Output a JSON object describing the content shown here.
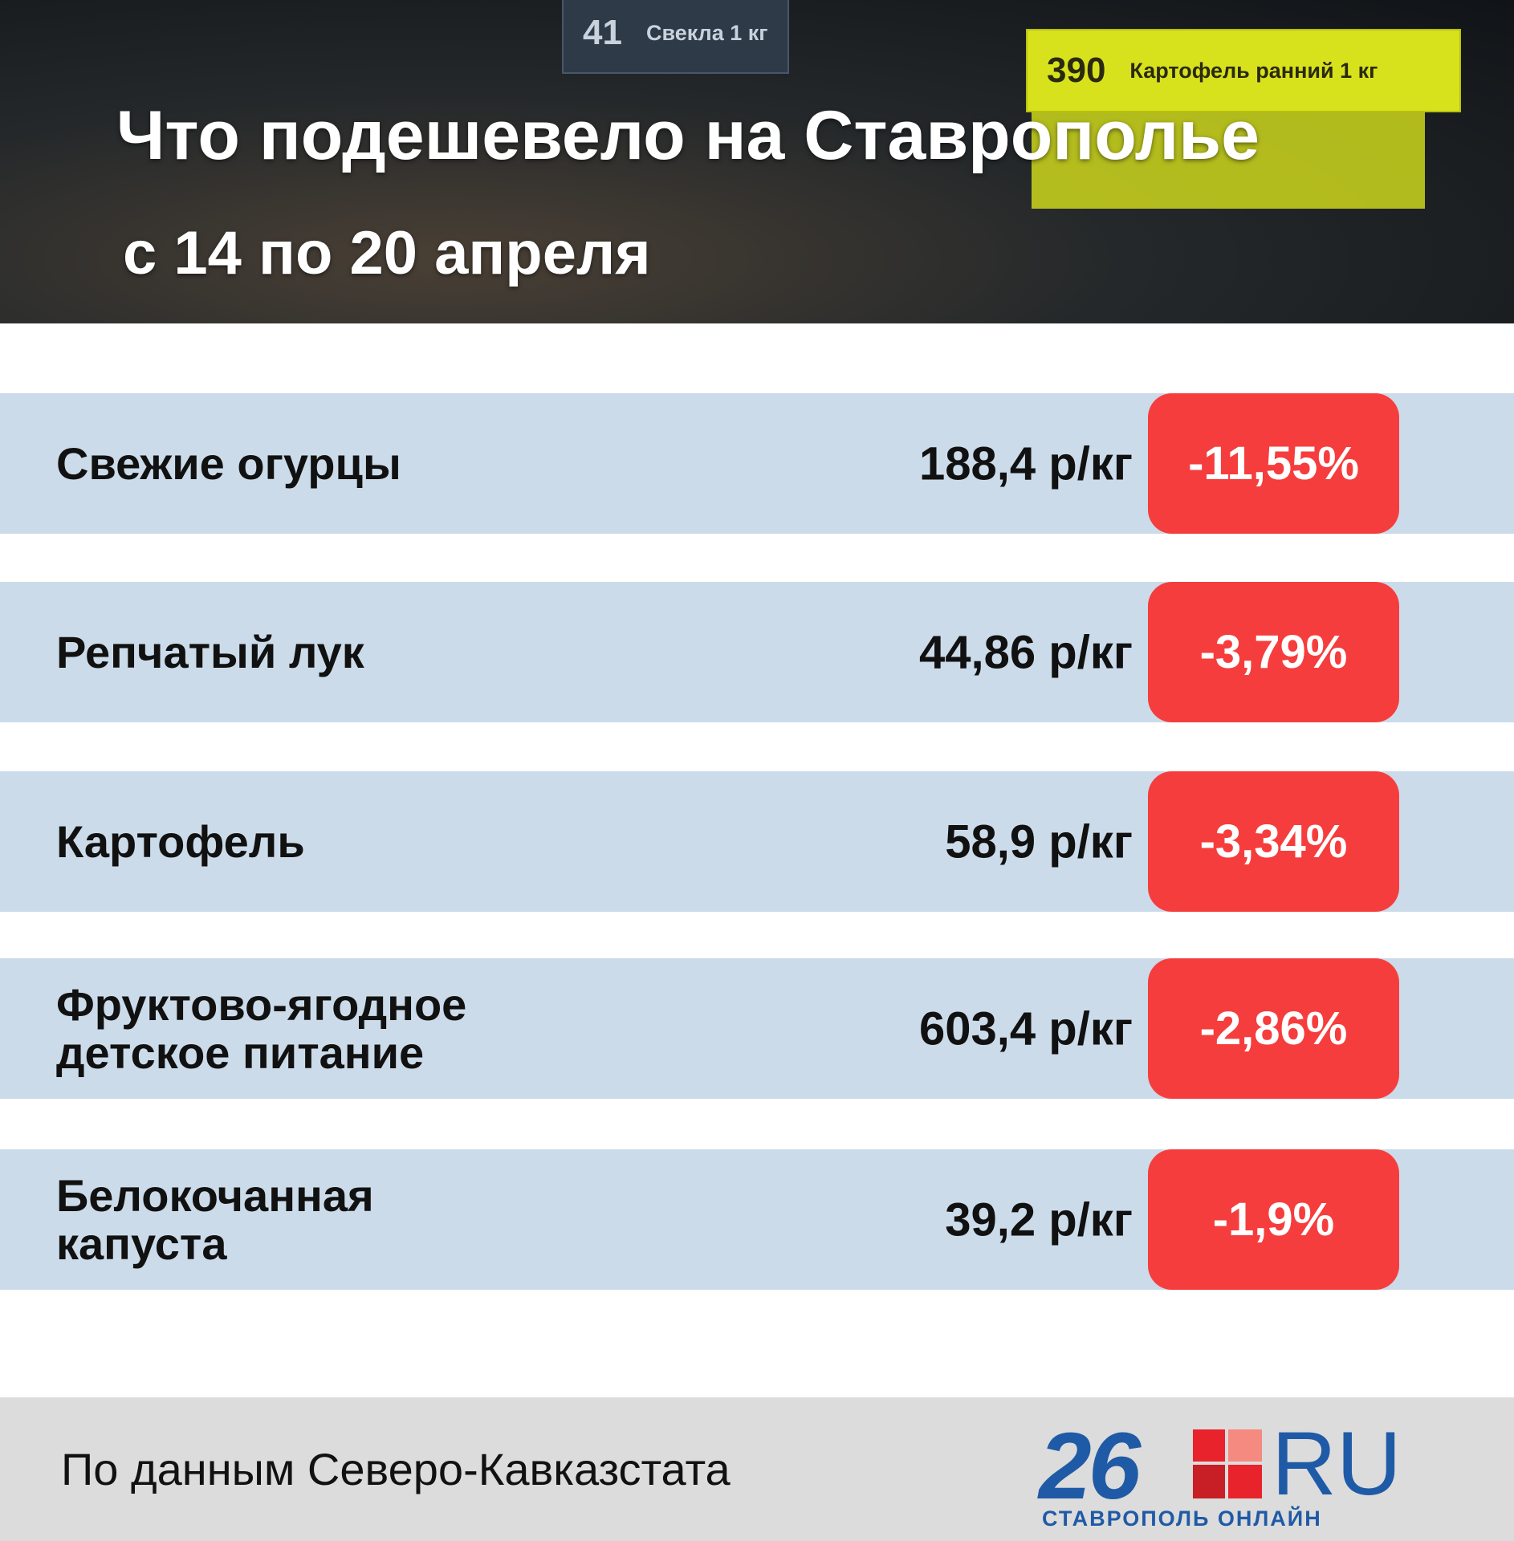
{
  "header": {
    "title": "Что подешевело на Ставрополье",
    "subtitle": "с 14 по 20 апреля",
    "photo_tags": [
      {
        "number": "41",
        "label": "Свекла 1 кг"
      },
      {
        "number": "390",
        "label": "Картофель ранний 1 кг"
      }
    ]
  },
  "table": {
    "rows": [
      {
        "name": "Свежие огурцы",
        "price": "188,4 р/кг",
        "change": "-11,55%"
      },
      {
        "name": "Репчатый лук",
        "price": "44,86 р/кг",
        "change": "-3,79%"
      },
      {
        "name": "Картофель",
        "price": "58,9 р/кг",
        "change": "-3,34%"
      },
      {
        "name": "Фруктово-ягодное детское питание",
        "price": "603,4 р/кг",
        "change": "-2,86%"
      },
      {
        "name": "Белокочанная капуста",
        "price": "39,2 р/кг",
        "change": "-1,9%"
      }
    ]
  },
  "footer": {
    "source": "По данным Северо-Кавказстата",
    "logo": {
      "number": "26",
      "suffix": "RU",
      "tagline": "СТАВРОПОЛЬ ОНЛАЙН"
    }
  }
}
